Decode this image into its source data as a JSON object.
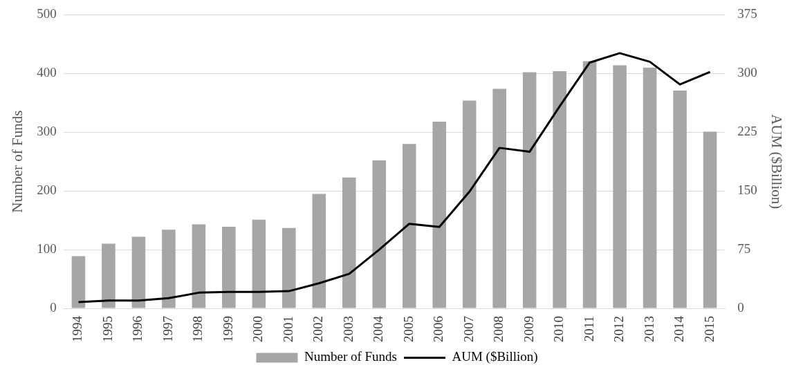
{
  "chart_data": {
    "type": "bar",
    "categories": [
      "1994",
      "1995",
      "1996",
      "1997",
      "1998",
      "1999",
      "2000",
      "2001",
      "2002",
      "2003",
      "2004",
      "2005",
      "2006",
      "2007",
      "2008",
      "2009",
      "2010",
      "2011",
      "2012",
      "2013",
      "2014",
      "2015"
    ],
    "series": [
      {
        "name": "Number of Funds",
        "color": "#a6a6a6",
        "values": [
          89,
          110,
          122,
          134,
          143,
          139,
          151,
          137,
          195,
          223,
          252,
          280,
          318,
          354,
          374,
          402,
          404,
          421,
          414,
          410,
          371,
          301
        ]
      },
      {
        "name": "AUM ($Billion)",
        "type": "line",
        "axis": "y2",
        "color": "#000000",
        "values": [
          8,
          10,
          10,
          13,
          20,
          21,
          21,
          22,
          32,
          44,
          75,
          108,
          104,
          149,
          205,
          200,
          258,
          314,
          326,
          315,
          286,
          302
        ]
      }
    ],
    "ylabel": "Number of Funds",
    "y2label": "AUM ($Billion)",
    "ylim": [
      0,
      500
    ],
    "yticks": [
      0,
      100,
      200,
      300,
      400,
      500
    ],
    "y2lim": [
      0,
      375
    ],
    "y2ticks": [
      0,
      75,
      150,
      225,
      300,
      375
    ],
    "grid": "y",
    "legend": "bottom",
    "marker": "none",
    "line_style": "solid"
  }
}
